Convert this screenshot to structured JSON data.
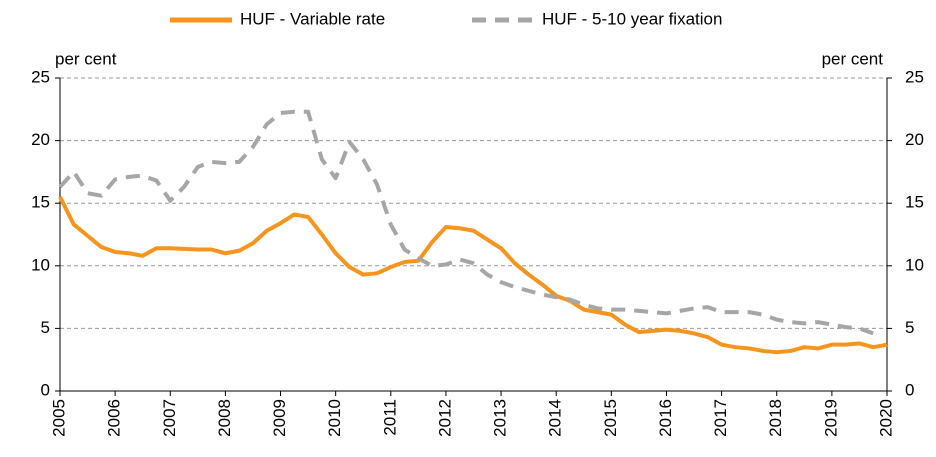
{
  "chart_data": {
    "type": "line",
    "x": [
      2005,
      2005.25,
      2005.5,
      2005.75,
      2006,
      2006.25,
      2006.5,
      2006.75,
      2007,
      2007.25,
      2007.5,
      2007.75,
      2008,
      2008.25,
      2008.5,
      2008.75,
      2009,
      2009.25,
      2009.5,
      2009.75,
      2010,
      2010.25,
      2010.5,
      2010.75,
      2011,
      2011.25,
      2011.5,
      2011.75,
      2012,
      2012.25,
      2012.5,
      2012.75,
      2013,
      2013.25,
      2013.5,
      2013.75,
      2014,
      2014.25,
      2014.5,
      2014.75,
      2015,
      2015.25,
      2015.5,
      2015.75,
      2016,
      2016.25,
      2016.5,
      2016.75,
      2017,
      2017.25,
      2017.5,
      2017.75,
      2018,
      2018.25,
      2018.5,
      2018.75,
      2019,
      2019.25,
      2019.5,
      2019.75,
      2020
    ],
    "series": [
      {
        "name": "HUF - Variable rate",
        "color": "#f7941d",
        "dash": false,
        "values": [
          15.5,
          13.3,
          12.4,
          11.5,
          11.1,
          11.0,
          10.8,
          11.4,
          11.4,
          11.35,
          11.3,
          11.3,
          11.0,
          11.2,
          11.8,
          12.8,
          13.4,
          14.1,
          13.9,
          12.5,
          11.0,
          9.9,
          9.3,
          9.4,
          9.9,
          10.3,
          10.4,
          11.9,
          13.1,
          13.0,
          12.8,
          12.1,
          11.4,
          10.2,
          9.3,
          8.5,
          7.6,
          7.2,
          6.5,
          6.3,
          6.1,
          5.3,
          4.7,
          4.8,
          4.9,
          4.8,
          4.6,
          4.3,
          3.7,
          3.5,
          3.4,
          3.2,
          3.1,
          3.2,
          3.5,
          3.4,
          3.7,
          3.7,
          3.8,
          3.5,
          3.7
        ]
      },
      {
        "name": "HUF - 5-10 year fixation",
        "color": "#a6a6a6",
        "dash": true,
        "values": [
          16.3,
          17.5,
          15.8,
          15.6,
          16.9,
          17.1,
          17.2,
          16.8,
          15.2,
          16.3,
          17.9,
          18.3,
          18.2,
          18.3,
          19.5,
          21.3,
          22.2,
          22.3,
          22.3,
          18.5,
          17.0,
          19.9,
          18.5,
          16.5,
          13.3,
          11.3,
          10.6,
          10.0,
          10.1,
          10.5,
          10.2,
          9.3,
          8.7,
          8.3,
          8.0,
          7.7,
          7.5,
          7.3,
          6.9,
          6.6,
          6.5,
          6.5,
          6.4,
          6.3,
          6.2,
          6.4,
          6.6,
          6.7,
          6.3,
          6.3,
          6.3,
          6.1,
          5.7,
          5.5,
          5.4,
          5.5,
          5.3,
          5.1,
          5.0,
          4.6,
          null
        ]
      }
    ],
    "ylabel": "per cent",
    "y2label": "per cent",
    "xlim": [
      2005,
      2020
    ],
    "xticks": [
      2005,
      2006,
      2007,
      2008,
      2009,
      2010,
      2011,
      2012,
      2013,
      2014,
      2015,
      2016,
      2017,
      2018,
      2019,
      2020
    ],
    "ylim": [
      0,
      25
    ],
    "yticks": [
      0,
      5,
      10,
      15,
      20,
      25
    ],
    "y2lim": [
      0,
      25
    ],
    "y2ticks": [
      0,
      5,
      10,
      15,
      20,
      25
    ],
    "grid": true,
    "legend": "top"
  }
}
